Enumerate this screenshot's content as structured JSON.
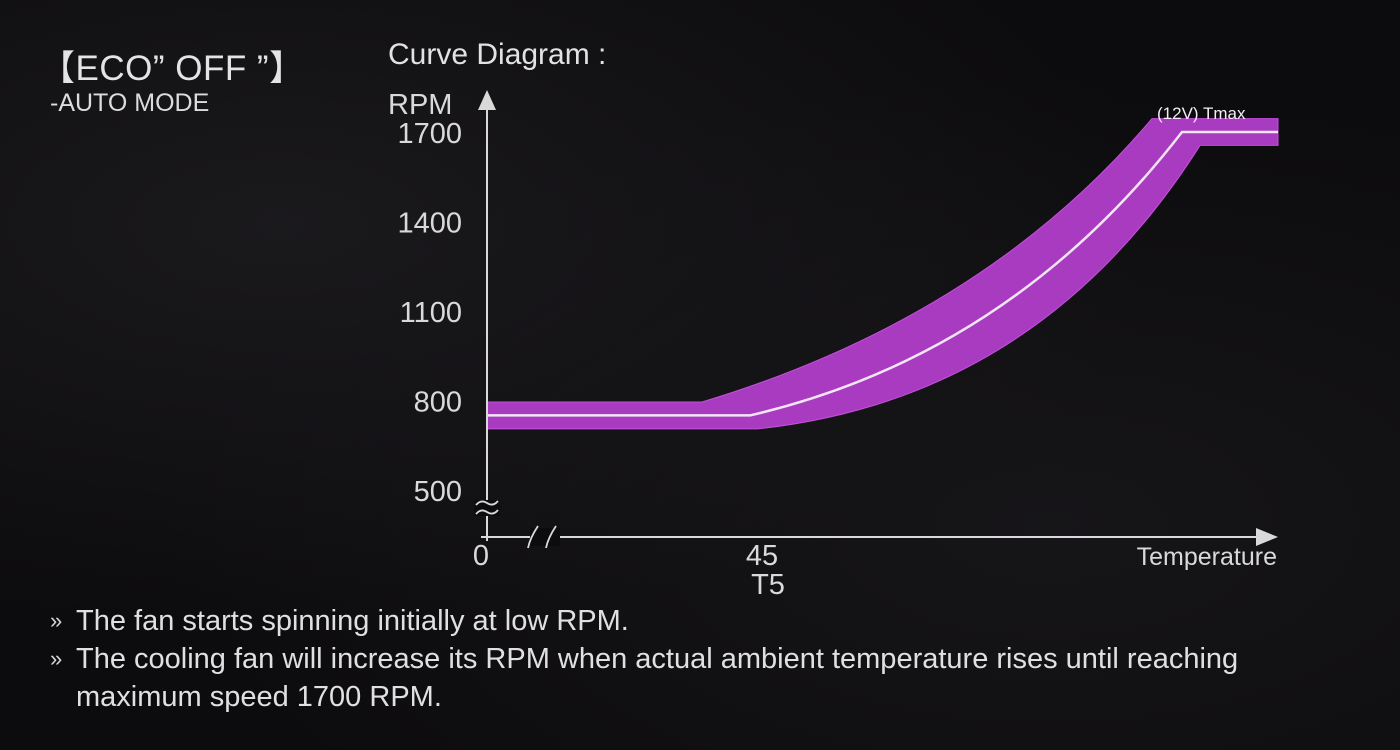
{
  "header": {
    "mode_title": "【ECO” OFF ”】",
    "mode_subtitle": "-AUTO MODE",
    "chart_heading": "Curve Diagram :"
  },
  "chart_data": {
    "type": "line",
    "title": "Curve Diagram :",
    "ylabel": "RPM",
    "xlabel": "Temperature",
    "yticks": [
      500,
      800,
      1100,
      1400,
      1700
    ],
    "ylim": [
      500,
      1700
    ],
    "xticks": [
      {
        "value": "0",
        "label": "0"
      },
      {
        "value": "45",
        "label": "45",
        "sublabel": "T5"
      }
    ],
    "axis_breaks": true,
    "series": [
      {
        "color": "#a83bbf",
        "band_rpm": 90,
        "points": [
          {
            "x": "0",
            "y": 750
          },
          {
            "x": "45",
            "y": 750
          },
          {
            "x": "Tmax",
            "y": 1700
          }
        ]
      }
    ],
    "annotations": [
      {
        "text": "(12V)  Tmax",
        "at": "Tmax"
      }
    ],
    "grid": false,
    "legend": "none"
  },
  "notes": [
    "The fan starts spinning initially at low RPM.",
    "The cooling fan will increase its RPM when actual ambient temperature rises until reaching maximum speed 1700 RPM."
  ],
  "bullet_glyph": "»",
  "colors": {
    "band": "#a83bbf",
    "band_edge": "#c64ee0",
    "curve": "#f2e6f6",
    "axis": "#d9d9d9",
    "background": "#0c0b0d"
  }
}
